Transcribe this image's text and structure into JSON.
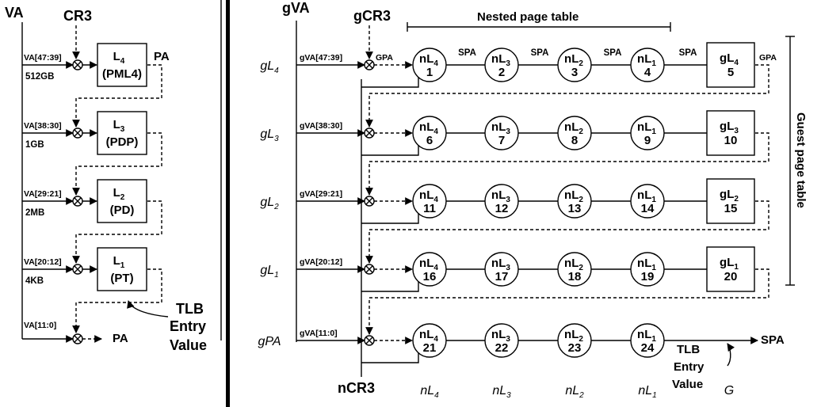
{
  "left": {
    "va": "VA",
    "cr3": "CR3",
    "pa_top": "PA",
    "pa_out": "PA",
    "tlb": [
      "TLB",
      "Entry",
      "Value"
    ],
    "levels": [
      {
        "va_bits": "VA[47:39]",
        "size": "512GB",
        "name": "L",
        "sub": "4",
        "desc": "(PML4)"
      },
      {
        "va_bits": "VA[38:30]",
        "size": "1GB",
        "name": "L",
        "sub": "3",
        "desc": "(PDP)"
      },
      {
        "va_bits": "VA[29:21]",
        "size": "2MB",
        "name": "L",
        "sub": "2",
        "desc": "(PD)"
      },
      {
        "va_bits": "VA[20:12]",
        "size": "4KB",
        "name": "L",
        "sub": "1",
        "desc": "(PT)"
      }
    ],
    "last_bits": "VA[11:0]"
  },
  "right": {
    "gva": "gVA",
    "gcr3": "gCR3",
    "ncr3": "nCR3",
    "nested_title": "Nested page table",
    "guest_title": "Guest page table",
    "spa_out": "SPA",
    "gpa": "GPA",
    "spa": "SPA",
    "tlb": [
      "TLB",
      "Entry",
      "Value"
    ],
    "rows": [
      {
        "label": "gL",
        "label_sub": "4",
        "bits": "gVA[47:39]",
        "nodes": [
          "1",
          "2",
          "3",
          "4"
        ],
        "guest": {
          "name": "gL",
          "sub": "4",
          "num": "5"
        }
      },
      {
        "label": "gL",
        "label_sub": "3",
        "bits": "gVA[38:30]",
        "nodes": [
          "6",
          "7",
          "8",
          "9"
        ],
        "guest": {
          "name": "gL",
          "sub": "3",
          "num": "10"
        }
      },
      {
        "label": "gL",
        "label_sub": "2",
        "bits": "gVA[29:21]",
        "nodes": [
          "11",
          "12",
          "13",
          "14"
        ],
        "guest": {
          "name": "gL",
          "sub": "2",
          "num": "15"
        }
      },
      {
        "label": "gL",
        "label_sub": "1",
        "bits": "gVA[20:12]",
        "nodes": [
          "16",
          "17",
          "18",
          "19"
        ],
        "guest": {
          "name": "gL",
          "sub": "1",
          "num": "20"
        }
      },
      {
        "label": "gPA",
        "label_sub": "",
        "bits": "gVA[11:0]",
        "nodes": [
          "21",
          "22",
          "23",
          "24"
        ],
        "guest": null
      }
    ],
    "node_names": [
      {
        "name": "nL",
        "sub": "4"
      },
      {
        "name": "nL",
        "sub": "3"
      },
      {
        "name": "nL",
        "sub": "2"
      },
      {
        "name": "nL",
        "sub": "1"
      }
    ],
    "bottom_labels": [
      {
        "name": "nL",
        "sub": "4"
      },
      {
        "name": "nL",
        "sub": "3"
      },
      {
        "name": "nL",
        "sub": "2"
      },
      {
        "name": "nL",
        "sub": "1"
      },
      {
        "name": "G",
        "sub": ""
      }
    ]
  }
}
